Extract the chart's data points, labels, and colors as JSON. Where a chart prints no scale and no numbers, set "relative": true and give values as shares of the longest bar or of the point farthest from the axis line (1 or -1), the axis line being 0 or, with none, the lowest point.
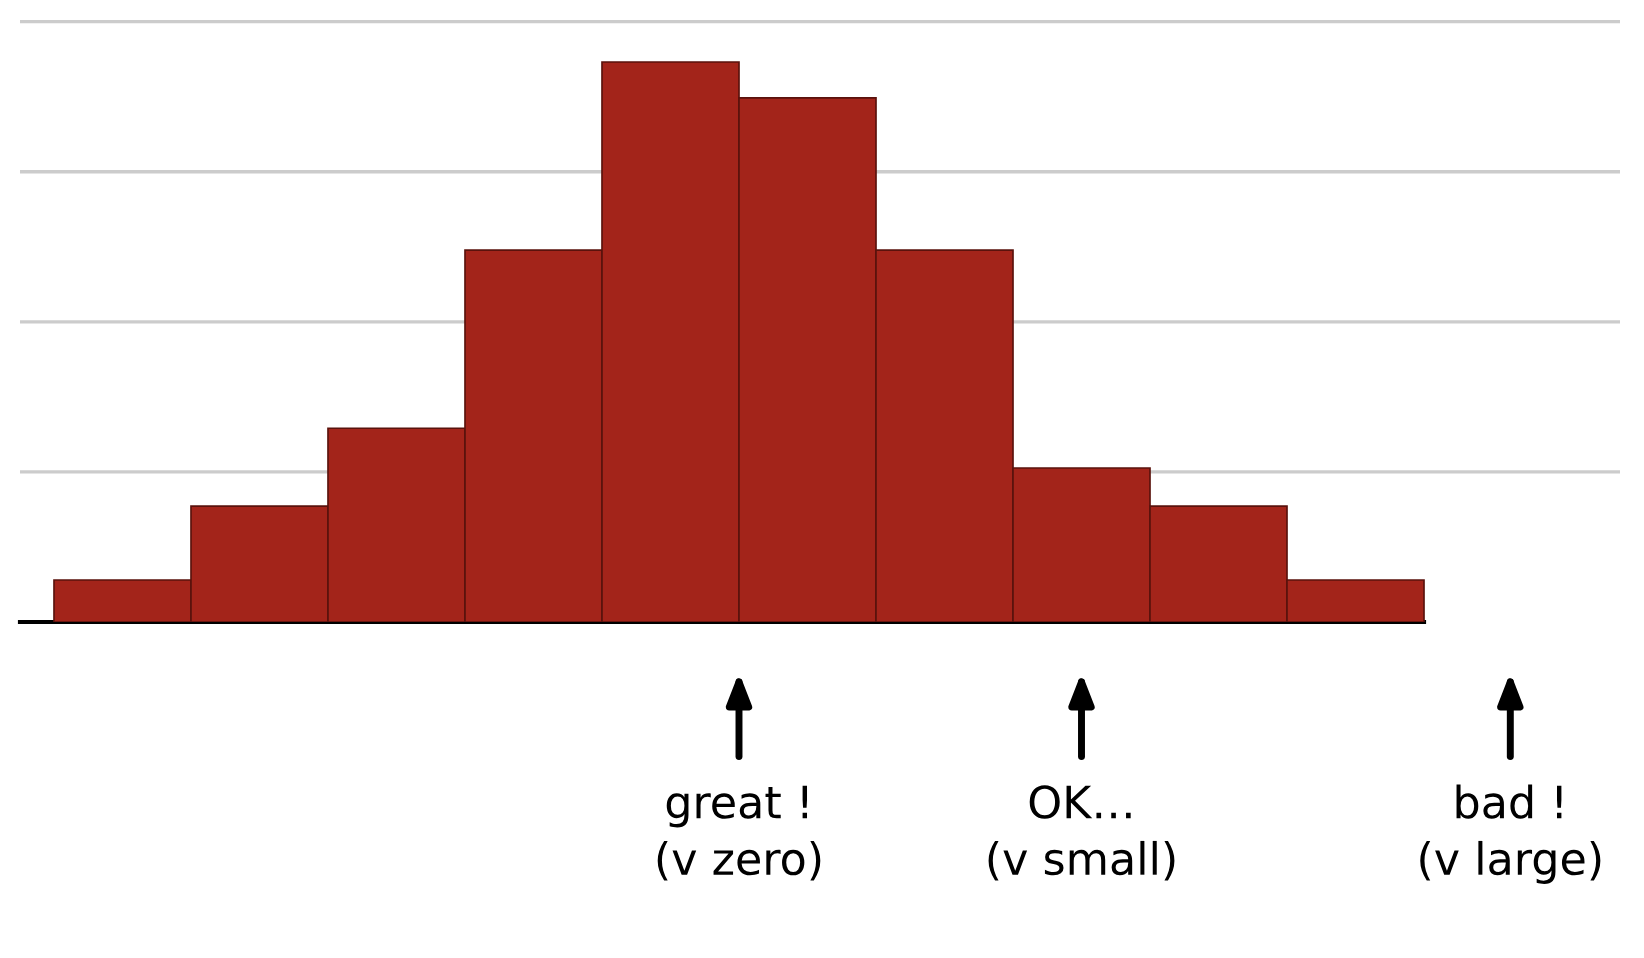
{
  "chart_data": {
    "type": "bar",
    "relative": true,
    "categories": [
      null,
      null,
      null,
      null,
      null,
      null,
      null,
      null,
      null,
      null
    ],
    "values": [
      0.075,
      0.207,
      0.346,
      0.664,
      1,
      0.936,
      0.664,
      0.275,
      0.207,
      0.075
    ],
    "color": "#a3241a",
    "grid": "y",
    "annotations": [
      "great !\n(v zero)",
      "OK…\n(v small)",
      "bad !\n(v large)"
    ]
  }
}
